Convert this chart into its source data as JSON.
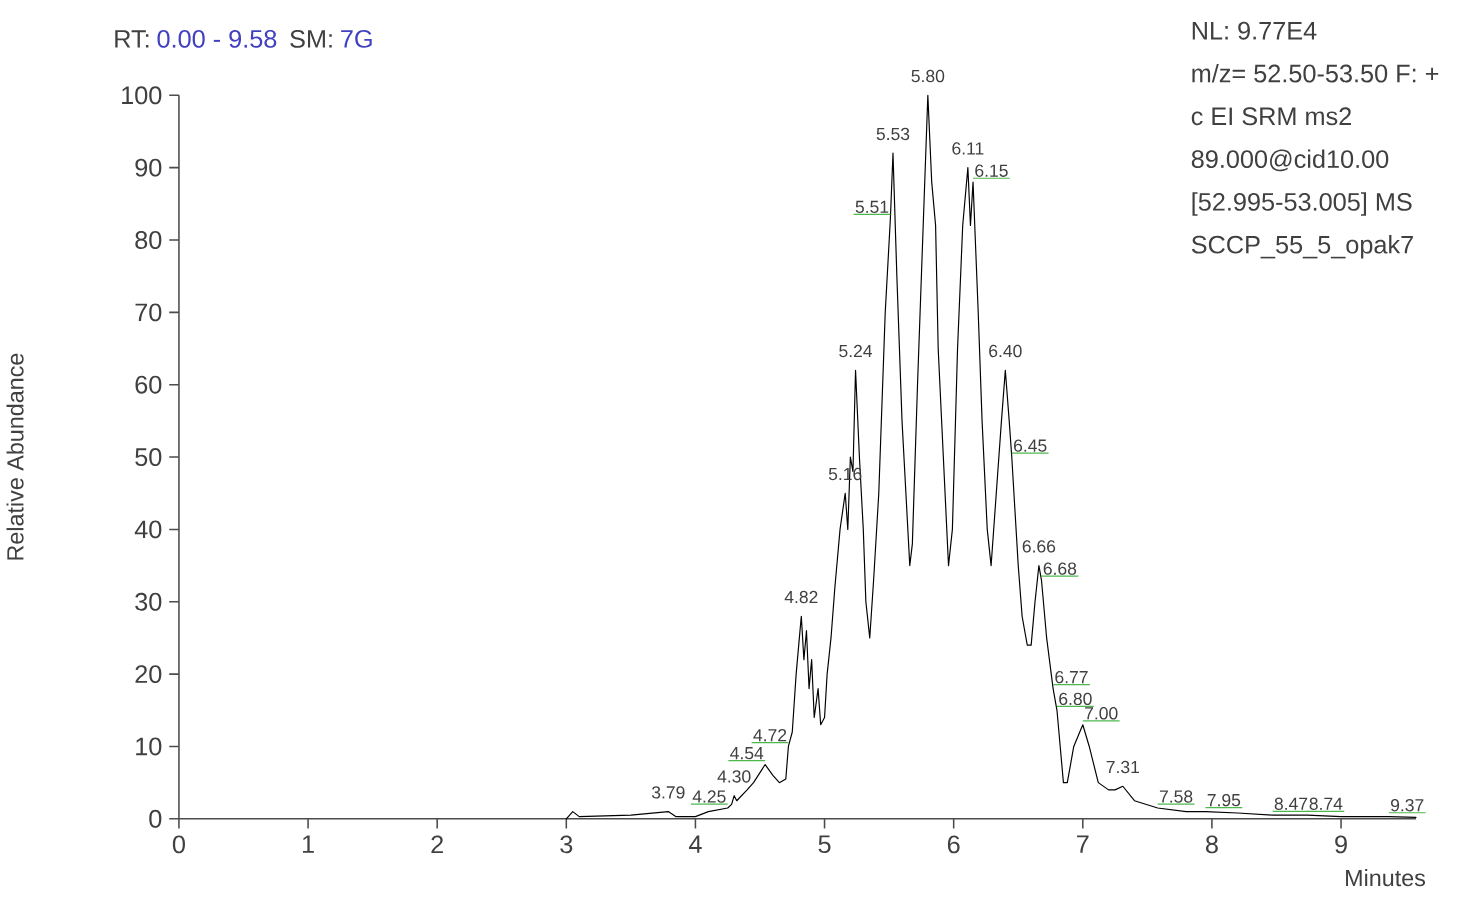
{
  "chart_data": {
    "type": "line",
    "xlabel": "Minutes",
    "ylabel": "Relative Abundance",
    "xlim": [
      0,
      9.58
    ],
    "ylim": [
      0,
      100
    ],
    "xticks": [
      0,
      1,
      2,
      3,
      4,
      5,
      6,
      7,
      8,
      9
    ],
    "yticks": [
      0,
      10,
      20,
      30,
      40,
      50,
      60,
      70,
      80,
      90,
      100
    ],
    "grid": false,
    "marker": "none",
    "line_style": "solid",
    "series": [
      {
        "color": "#000000",
        "x": [
          3.0,
          3.05,
          3.1,
          3.5,
          3.79,
          3.85,
          4.0,
          4.1,
          4.25,
          4.28,
          4.3,
          4.32,
          4.4,
          4.45,
          4.54,
          4.6,
          4.65,
          4.7,
          4.72,
          4.75,
          4.78,
          4.8,
          4.82,
          4.84,
          4.86,
          4.88,
          4.9,
          4.92,
          4.95,
          4.97,
          5.0,
          5.02,
          5.05,
          5.08,
          5.12,
          5.16,
          5.18,
          5.2,
          5.22,
          5.24,
          5.27,
          5.3,
          5.32,
          5.35,
          5.38,
          5.42,
          5.47,
          5.51,
          5.53,
          5.56,
          5.6,
          5.63,
          5.66,
          5.68,
          5.72,
          5.76,
          5.8,
          5.83,
          5.86,
          5.88,
          5.92,
          5.96,
          5.99,
          6.03,
          6.07,
          6.11,
          6.13,
          6.15,
          6.19,
          6.22,
          6.26,
          6.29,
          6.33,
          6.37,
          6.4,
          6.43,
          6.45,
          6.5,
          6.53,
          6.57,
          6.6,
          6.63,
          6.66,
          6.68,
          6.72,
          6.77,
          6.8,
          6.85,
          6.88,
          6.93,
          7.0,
          7.05,
          7.12,
          7.2,
          7.25,
          7.31,
          7.4,
          7.58,
          7.8,
          7.95,
          8.2,
          8.47,
          8.74,
          9.0,
          9.37,
          9.58
        ],
        "values": [
          0,
          1,
          0.3,
          0.5,
          1,
          0.3,
          0.3,
          1,
          1.5,
          2,
          3.2,
          2.5,
          4,
          5,
          7.5,
          6,
          5,
          5.5,
          10,
          12,
          20,
          24,
          28,
          22,
          26,
          18,
          22,
          14,
          18,
          13,
          14,
          20,
          25,
          32,
          40,
          45,
          40,
          50,
          48,
          62,
          50,
          40,
          30,
          25,
          33,
          45,
          70,
          83,
          92,
          75,
          55,
          45,
          35,
          38,
          60,
          80,
          100,
          88,
          82,
          65,
          50,
          35,
          40,
          65,
          82,
          90,
          82,
          88,
          70,
          55,
          40,
          35,
          45,
          55,
          62,
          55,
          50,
          35,
          28,
          24,
          24,
          30,
          35,
          33,
          25,
          18,
          15,
          5,
          5,
          10,
          13,
          10,
          5,
          4,
          4,
          4.5,
          2.5,
          1.5,
          1,
          1,
          0.8,
          0.5,
          0.5,
          0.3,
          0.3,
          0.2
        ]
      }
    ],
    "annotations": [
      "RT:",
      "0.00 - 9.58",
      "SM:",
      "7G",
      "NL: 9.77E4",
      "m/z= 52.50-53.50 F: +",
      "c EI SRM ms2",
      "89.000@cid10.00",
      "[52.995-53.005]  MS",
      "SCCP_55_5_opak7",
      {
        "text": "3.79",
        "x": 3.79,
        "y": 1
      },
      {
        "text": "4.25",
        "x": 4.25,
        "y": 1.5
      },
      {
        "text": "4.30",
        "x": 4.3,
        "y": 3.2
      },
      {
        "text": "4.54",
        "x": 4.54,
        "y": 7.5
      },
      {
        "text": "4.72",
        "x": 4.72,
        "y": 10
      },
      {
        "text": "4.82",
        "x": 4.82,
        "y": 28
      },
      {
        "text": "5.16",
        "x": 5.16,
        "y": 45
      },
      {
        "text": "5.24",
        "x": 5.24,
        "y": 62
      },
      {
        "text": "5.51",
        "x": 5.51,
        "y": 83
      },
      {
        "text": "5.53",
        "x": 5.53,
        "y": 92
      },
      {
        "text": "5.80",
        "x": 5.8,
        "y": 100
      },
      {
        "text": "6.11",
        "x": 6.11,
        "y": 90
      },
      {
        "text": "6.15",
        "x": 6.15,
        "y": 88
      },
      {
        "text": "6.40",
        "x": 6.4,
        "y": 62
      },
      {
        "text": "6.45",
        "x": 6.45,
        "y": 50
      },
      {
        "text": "6.66",
        "x": 6.66,
        "y": 35
      },
      {
        "text": "6.68",
        "x": 6.68,
        "y": 33
      },
      {
        "text": "6.77",
        "x": 6.77,
        "y": 18
      },
      {
        "text": "6.80",
        "x": 6.8,
        "y": 15
      },
      {
        "text": "7.00",
        "x": 7.0,
        "y": 13
      },
      {
        "text": "7.31",
        "x": 7.31,
        "y": 4.5
      },
      {
        "text": "7.58",
        "x": 7.58,
        "y": 1.5
      },
      {
        "text": "7.95",
        "x": 7.95,
        "y": 1
      },
      {
        "text": "8.47",
        "x": 8.47,
        "y": 0.5
      },
      {
        "text": "8.74",
        "x": 8.74,
        "y": 0.5
      },
      {
        "text": "9.37",
        "x": 9.37,
        "y": 0.3
      }
    ]
  }
}
